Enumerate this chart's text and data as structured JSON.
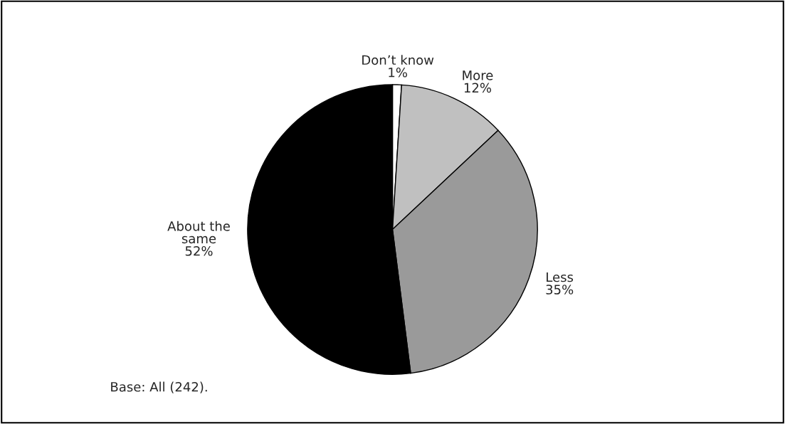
{
  "chart_data": {
    "type": "pie",
    "categories": [
      "Don’t know",
      "More",
      "Less",
      "About the\nsame"
    ],
    "values": [
      1,
      12,
      35,
      52
    ],
    "value_labels": [
      "1%",
      "12%",
      "35%",
      "52%"
    ],
    "colors": [
      "#ffffff",
      "#c0c0c0",
      "#9a9a9a",
      "#000000"
    ],
    "annotations": [
      "Base: All (242)."
    ]
  }
}
